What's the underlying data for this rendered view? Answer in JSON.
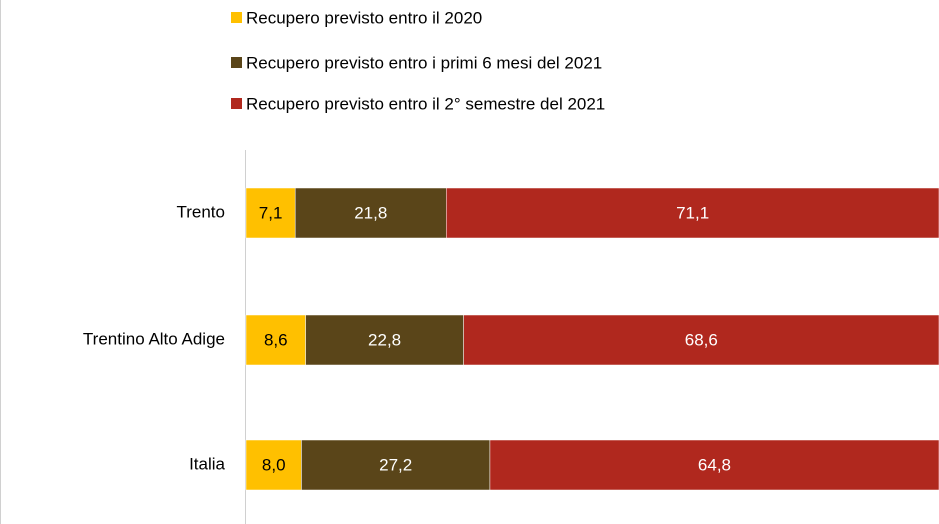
{
  "chart_data": {
    "type": "stacked-barh",
    "categories": [
      "Trento",
      "Trentino Alto Adige",
      "Italia"
    ],
    "xlim": [
      0,
      100
    ],
    "series": [
      {
        "name": "Recupero previsto entro il 2020",
        "color": "#ffc000",
        "label_color": "#000000",
        "values": [
          7.1,
          8.6,
          8.0
        ],
        "value_labels": [
          "7,1",
          "8,6",
          "8,0"
        ]
      },
      {
        "name": "Recupero previsto entro i primi 6 mesi del 2021",
        "color": "#5a4519",
        "label_color": "#ffffff",
        "values": [
          21.8,
          22.8,
          27.2
        ],
        "value_labels": [
          "21,8",
          "22,8",
          "27,2"
        ]
      },
      {
        "name": "Recupero previsto entro il 2° semestre del 2021",
        "color": "#b0281e",
        "label_color": "#ffffff",
        "values": [
          71.1,
          68.6,
          64.8
        ],
        "value_labels": [
          "71,1",
          "68,6",
          "64,8"
        ]
      }
    ]
  }
}
